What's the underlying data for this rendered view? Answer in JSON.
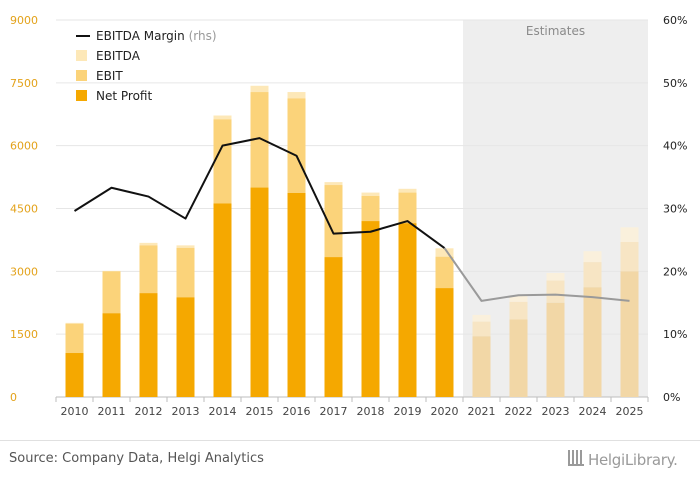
{
  "chart_data": {
    "type": "bar",
    "categories": [
      "2010",
      "2011",
      "2012",
      "2013",
      "2014",
      "2015",
      "2016",
      "2017",
      "2018",
      "2019",
      "2020",
      "2021",
      "2022",
      "2023",
      "2024",
      "2025"
    ],
    "series": [
      {
        "name": "Net Profit",
        "kind": "stacked-bar",
        "values": [
          1050,
          2000,
          2480,
          2380,
          4620,
          5000,
          4870,
          3340,
          4200,
          4150,
          2600,
          1450,
          1850,
          2250,
          2620,
          3000
        ]
      },
      {
        "name": "EBIT",
        "kind": "stacked-bar",
        "values": [
          1750,
          3000,
          3620,
          3560,
          6630,
          7280,
          7130,
          5060,
          4800,
          4880,
          3350,
          1800,
          2270,
          2780,
          3220,
          3700
        ]
      },
      {
        "name": "EBITDA",
        "kind": "stacked-bar",
        "values": [
          1770,
          3010,
          3680,
          3620,
          6720,
          7430,
          7280,
          5130,
          4880,
          4970,
          3550,
          1960,
          2420,
          2960,
          3480,
          4050
        ]
      },
      {
        "name": "EBITDA Margin",
        "name_suffix": "(rhs)",
        "kind": "line",
        "axis": "right",
        "unit": "%",
        "values": [
          29.6,
          33.3,
          31.9,
          28.4,
          40.0,
          41.2,
          38.4,
          26.0,
          26.3,
          28.0,
          23.7,
          15.3,
          16.2,
          16.3,
          15.9,
          15.3
        ]
      }
    ],
    "estimate_from_index": 11,
    "estimates_label": "Estimates",
    "y_left": {
      "ticks": [
        "0",
        "1500",
        "3000",
        "4500",
        "6000",
        "7500",
        "9000"
      ],
      "min": 0,
      "max": 9000
    },
    "y_right": {
      "ticks": [
        "0%",
        "10%",
        "20%",
        "30%",
        "40%",
        "50%",
        "60%"
      ],
      "min": 0,
      "max": 60
    },
    "grid": true,
    "legend_position": "top-left",
    "colors": {
      "net_profit": "#f5a800",
      "ebit": "#fbd37a",
      "ebitda": "#fde8b8",
      "net_profit_est": "#f2d7a6",
      "ebit_est": "#f7e5c4",
      "ebitda_est": "#faf0dc",
      "margin_line": "#111111",
      "margin_line_est": "#9a9a9a",
      "axis_label": "#e3a21a",
      "estimates_band": "#eeeeee",
      "grid": "#e6e6e6"
    }
  },
  "footer": {
    "source": "Source: Company Data, Helgi Analytics",
    "brand": "HelgiLibrary."
  }
}
